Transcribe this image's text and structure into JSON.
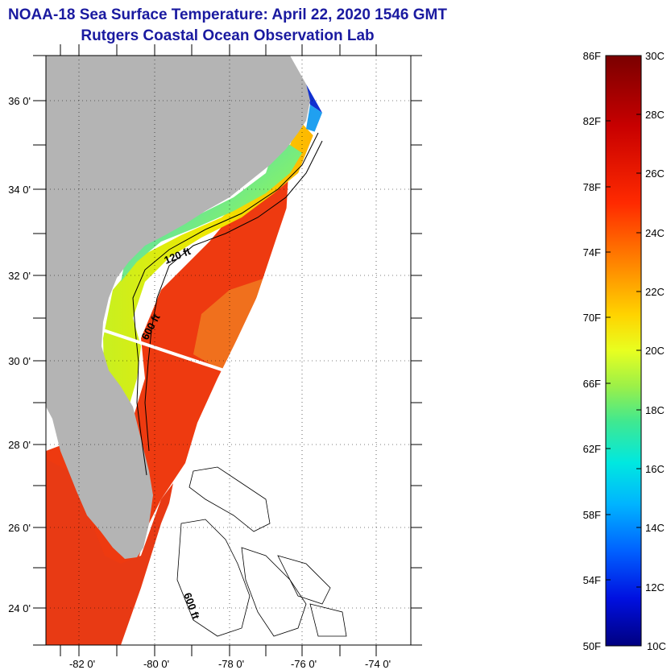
{
  "title": {
    "line1": "NOAA-18 Sea Surface Temperature:  April 22, 2020 1546 GMT",
    "line2": "Rutgers Coastal Ocean Observation Lab"
  },
  "map": {
    "lat_labels": [
      "36 0'",
      "34 0'",
      "32 0'",
      "30 0'",
      "28 0'",
      "26 0'",
      "24 0'"
    ],
    "lon_labels": [
      "-82 0'",
      "-80 0'",
      "-78 0'",
      "-76 0'",
      "-74 0'"
    ],
    "contour_labels": [
      "120 ft",
      "600 ft",
      "600 ft"
    ]
  },
  "colorbar": {
    "fahrenheit": [
      "86F",
      "82F",
      "78F",
      "74F",
      "70F",
      "66F",
      "62F",
      "58F",
      "54F",
      "50F"
    ],
    "celsius": [
      "30C",
      "28C",
      "26C",
      "24C",
      "22C",
      "20C",
      "18C",
      "16C",
      "14C",
      "12C",
      "10C"
    ]
  },
  "colors": {
    "title": "#1a1aa0",
    "land": "#b4b4b4",
    "cold": "#0000a0",
    "warm": "#e82000"
  }
}
